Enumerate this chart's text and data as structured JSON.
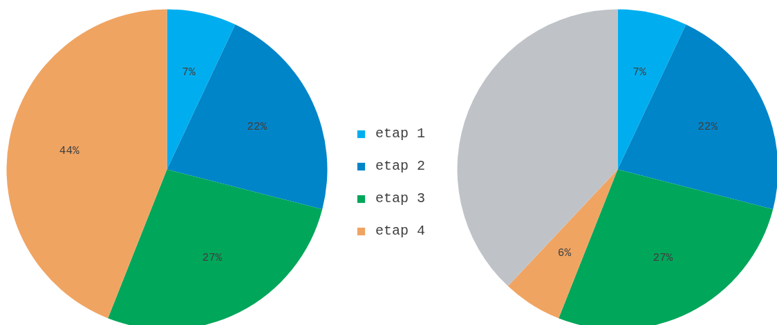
{
  "chart_data": [
    {
      "type": "pie",
      "categories": [
        "etap 1",
        "etap 2",
        "etap 3",
        "etap 4"
      ],
      "values": [
        7,
        22,
        27,
        44
      ],
      "colors": [
        "#00aeef",
        "#0085c9",
        "#00a65a",
        "#f0a462"
      ],
      "value_labels": [
        "7%",
        "22%",
        "27%",
        "44%"
      ],
      "legend": "right"
    },
    {
      "type": "pie",
      "categories": [
        null,
        null,
        null,
        null,
        null
      ],
      "values": [
        7,
        22,
        27,
        6,
        38
      ],
      "colors": [
        "#00aeef",
        "#0085c9",
        "#00a65a",
        "#f0a462",
        "#bfc3c8"
      ],
      "value_labels": [
        "7%",
        "22%",
        "27%",
        "6%",
        null
      ]
    }
  ]
}
